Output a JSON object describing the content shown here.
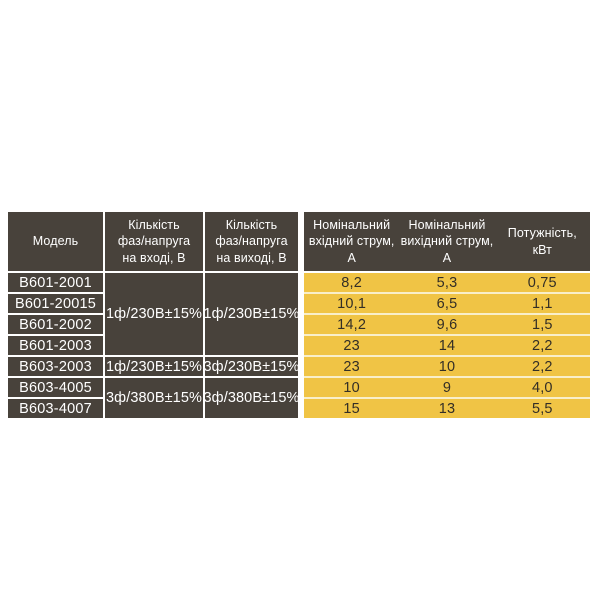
{
  "colors": {
    "background": "#ffffff",
    "table_dark": "#48423b",
    "cell_yellow": "#f0c445",
    "row_separator_cream": "#f9efca",
    "grid_line_white": "#ffffff",
    "header_text": "#ffffff",
    "value_text": "#332e26"
  },
  "table": {
    "header": {
      "model": "Модель",
      "phases_input": "Кількість\nфаз/напруга\nна вході, В",
      "phases_output": "Кількість\nфаз/напруга\nна виході, В",
      "nominal_input_current": "Номінальний\nвхідний струм,\nА",
      "nominal_output_current": "Номінальний\nвихідний струм,\nА",
      "power": "Потужність,\nкВт"
    },
    "voltage_groups": [
      {
        "input": "1ф/230В±15%",
        "output": "1ф/230В±15%"
      },
      {
        "input": "1ф/230В±15%",
        "output": "3ф/230В±15%"
      },
      {
        "input": "3ф/380В±15%",
        "output": "3ф/380В±15%"
      }
    ],
    "rows": [
      {
        "model": "В601-2001",
        "input_current": "8,2",
        "output_current": "5,3",
        "power": "0,75"
      },
      {
        "model": "В601-20015",
        "input_current": "10,1",
        "output_current": "6,5",
        "power": "1,1"
      },
      {
        "model": "В601-2002",
        "input_current": "14,2",
        "output_current": "9,6",
        "power": "1,5"
      },
      {
        "model": "В601-2003",
        "input_current": "23",
        "output_current": "14",
        "power": "2,2"
      },
      {
        "model": "В603-2003",
        "input_current": "23",
        "output_current": "10",
        "power": "2,2"
      },
      {
        "model": "В603-4005",
        "input_current": "10",
        "output_current": "9",
        "power": "4,0"
      },
      {
        "model": "В603-4007",
        "input_current": "15",
        "output_current": "13",
        "power": "5,5"
      }
    ]
  }
}
